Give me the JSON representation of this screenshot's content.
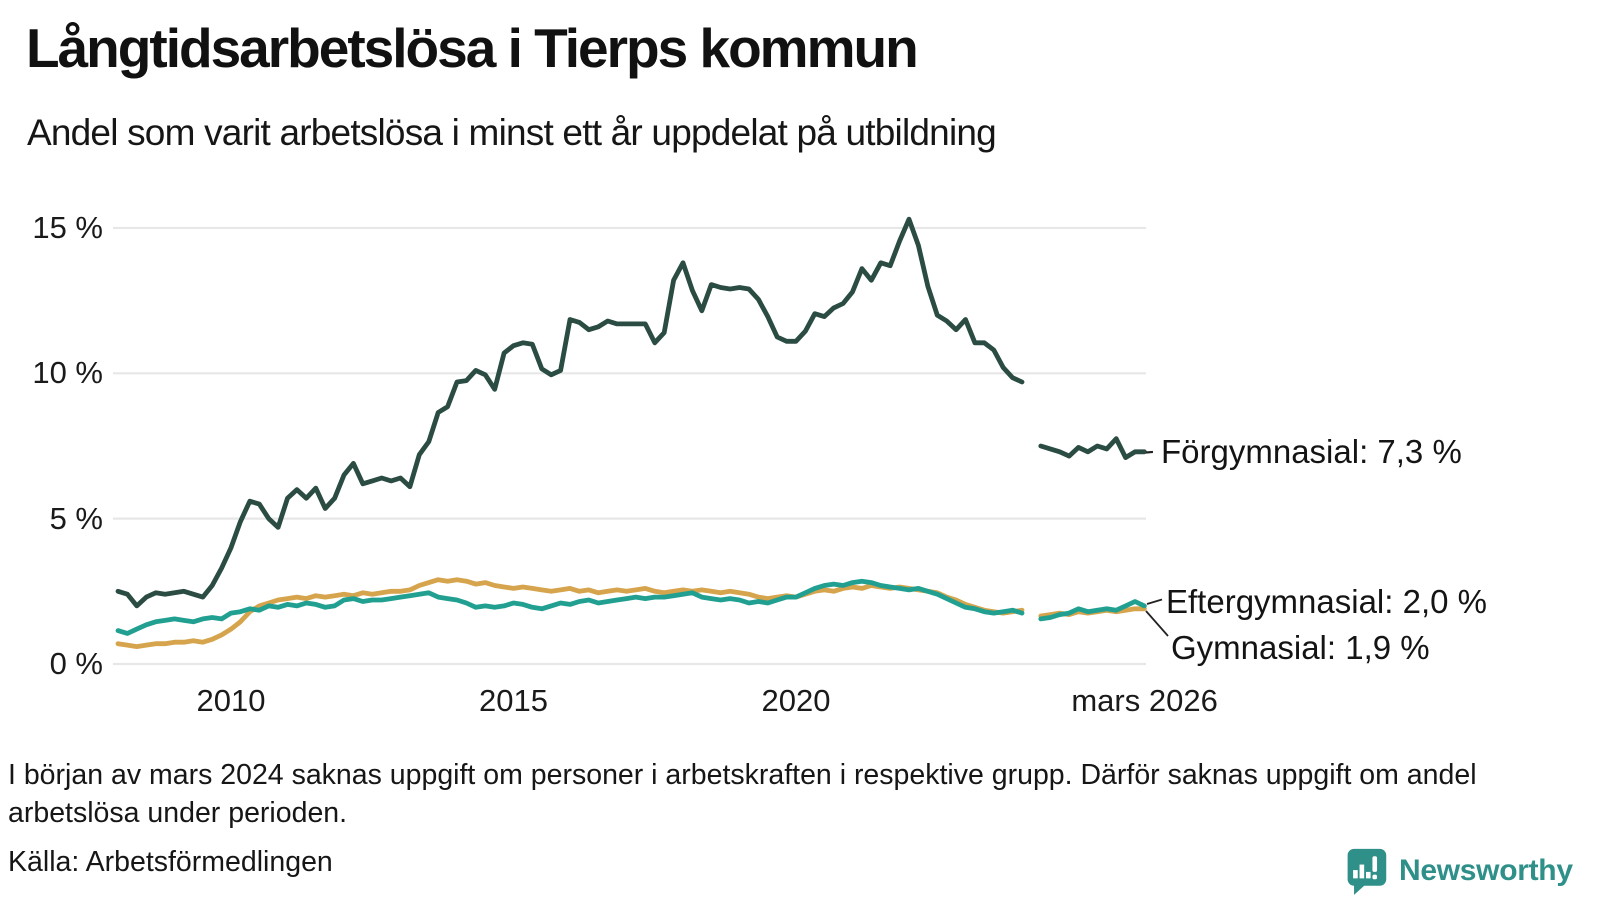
{
  "chart_data": {
    "type": "line",
    "title": "Långtidsarbetslösa i Tierps kommun",
    "subtitle": "Andel som varit arbetslösa i minst ett år uppdelat på utbildning",
    "unit": "%",
    "grid": "horizontal",
    "legend_position": "line-end-labels",
    "ylim": [
      0,
      15.5
    ],
    "x_start_year": 2008,
    "x_step_months": 2,
    "y_ticks": [
      {
        "value": 15,
        "label": "15 %"
      },
      {
        "value": 10,
        "label": "10 %"
      },
      {
        "value": 5,
        "label": "5 %"
      },
      {
        "value": 0,
        "label": "0 %"
      }
    ],
    "x_ticks": [
      {
        "year": 2010,
        "label": "2010"
      },
      {
        "year": 2015,
        "label": "2015"
      },
      {
        "year": 2020,
        "label": "2020"
      },
      {
        "year": 2026.17,
        "label": "mars 2026"
      }
    ],
    "series": [
      {
        "name": "Förgymnasial",
        "end_label": "Förgymnasial: 7,3 %",
        "end_value": 7.3,
        "color": "#2b4c43",
        "values": [
          2.5,
          2.4,
          2.0,
          2.3,
          2.45,
          2.4,
          2.45,
          2.5,
          2.4,
          2.3,
          2.7,
          3.3,
          4.0,
          4.9,
          5.6,
          5.5,
          5.0,
          4.7,
          5.7,
          6.0,
          5.7,
          6.05,
          5.35,
          5.7,
          6.5,
          6.9,
          6.2,
          6.3,
          6.4,
          6.3,
          6.4,
          6.1,
          7.2,
          7.65,
          8.65,
          8.85,
          9.7,
          9.75,
          10.1,
          9.95,
          9.45,
          10.7,
          10.95,
          11.05,
          11.0,
          10.15,
          9.95,
          10.1,
          11.85,
          11.75,
          11.5,
          11.6,
          11.8,
          11.7,
          11.7,
          11.7,
          11.7,
          11.05,
          11.4,
          13.2,
          13.8,
          12.85,
          12.15,
          13.05,
          12.95,
          12.9,
          12.95,
          12.9,
          12.55,
          11.95,
          11.25,
          11.1,
          11.1,
          11.45,
          12.05,
          11.95,
          12.25,
          12.4,
          12.8,
          13.6,
          13.2,
          13.8,
          13.7,
          14.55,
          15.3,
          14.4,
          13.0,
          12.0,
          11.8,
          11.5,
          11.85,
          11.05,
          11.05,
          10.8,
          10.2,
          9.85,
          9.7,
          null,
          7.5,
          7.4,
          7.3,
          7.15,
          7.45,
          7.3,
          7.5,
          7.4,
          7.75,
          7.1,
          7.3,
          7.3
        ]
      },
      {
        "name": "Eftergymnasial",
        "end_label": "Eftergymnasial: 2,0 %",
        "end_value": 2.0,
        "color": "#21a091",
        "values": [
          1.15,
          1.05,
          1.2,
          1.35,
          1.45,
          1.5,
          1.55,
          1.5,
          1.45,
          1.55,
          1.6,
          1.55,
          1.75,
          1.8,
          1.9,
          1.85,
          2.0,
          1.95,
          2.05,
          2.0,
          2.1,
          2.05,
          1.95,
          2.0,
          2.2,
          2.25,
          2.15,
          2.2,
          2.2,
          2.25,
          2.3,
          2.35,
          2.4,
          2.45,
          2.3,
          2.25,
          2.2,
          2.1,
          1.95,
          2.0,
          1.95,
          2.0,
          2.1,
          2.05,
          1.95,
          1.9,
          2.0,
          2.1,
          2.05,
          2.15,
          2.2,
          2.1,
          2.15,
          2.2,
          2.25,
          2.3,
          2.25,
          2.3,
          2.3,
          2.35,
          2.4,
          2.45,
          2.3,
          2.25,
          2.2,
          2.25,
          2.2,
          2.1,
          2.15,
          2.1,
          2.2,
          2.3,
          2.3,
          2.45,
          2.6,
          2.7,
          2.75,
          2.7,
          2.8,
          2.85,
          2.8,
          2.7,
          2.65,
          2.6,
          2.55,
          2.6,
          2.5,
          2.4,
          2.25,
          2.1,
          1.95,
          1.9,
          1.8,
          1.75,
          1.8,
          1.85,
          1.75,
          null,
          1.55,
          1.6,
          1.7,
          1.75,
          1.9,
          1.8,
          1.85,
          1.9,
          1.85,
          2.0,
          2.15,
          2.0
        ]
      },
      {
        "name": "Gymnasial",
        "end_label": "Gymnasial: 1,9 %",
        "end_value": 1.9,
        "color": "#d5a44c",
        "values": [
          0.7,
          0.65,
          0.6,
          0.65,
          0.7,
          0.7,
          0.75,
          0.75,
          0.8,
          0.75,
          0.85,
          1.0,
          1.2,
          1.45,
          1.8,
          2.0,
          2.1,
          2.2,
          2.25,
          2.3,
          2.25,
          2.35,
          2.3,
          2.35,
          2.4,
          2.35,
          2.45,
          2.4,
          2.45,
          2.5,
          2.5,
          2.55,
          2.7,
          2.8,
          2.9,
          2.85,
          2.9,
          2.85,
          2.75,
          2.8,
          2.7,
          2.65,
          2.6,
          2.65,
          2.6,
          2.55,
          2.5,
          2.55,
          2.6,
          2.5,
          2.55,
          2.45,
          2.5,
          2.55,
          2.5,
          2.55,
          2.6,
          2.5,
          2.45,
          2.5,
          2.55,
          2.5,
          2.55,
          2.5,
          2.45,
          2.5,
          2.45,
          2.4,
          2.3,
          2.25,
          2.3,
          2.35,
          2.3,
          2.4,
          2.5,
          2.55,
          2.5,
          2.6,
          2.65,
          2.6,
          2.7,
          2.65,
          2.6,
          2.65,
          2.6,
          2.55,
          2.5,
          2.45,
          2.3,
          2.2,
          2.05,
          1.95,
          1.85,
          1.8,
          1.75,
          1.8,
          1.85,
          null,
          1.65,
          1.7,
          1.75,
          1.7,
          1.8,
          1.75,
          1.8,
          1.85,
          1.8,
          1.85,
          1.9,
          1.9
        ]
      }
    ],
    "colors": {
      "grid": "#e7e7e7",
      "text": "#1a1a1a",
      "connector": "#222222"
    }
  },
  "footer": {
    "note": "I början av mars 2024 saknas uppgift om personer i arbetskraften i respektive grupp. Därför saknas uppgift om andel arbetslösa under perioden.",
    "source": "Källa: Arbetsförmedlingen"
  },
  "logo": {
    "text": "Newsworthy",
    "color": "#2f9089"
  }
}
